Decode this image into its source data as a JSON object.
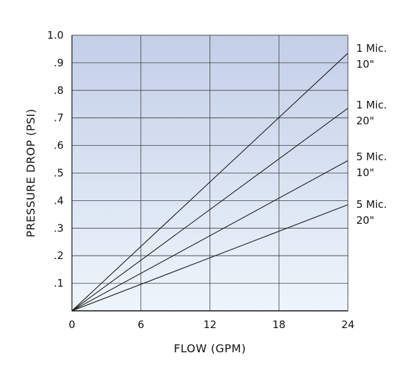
{
  "chart_data": {
    "type": "line",
    "title": "",
    "xlabel": "FLOW (GPM)",
    "ylabel": "PRESSURE DROP (PSI)",
    "xlim": [
      0,
      24
    ],
    "ylim": [
      0,
      1.0
    ],
    "grid": true,
    "x_ticks": [
      {
        "value": 0,
        "label": "0"
      },
      {
        "value": 6,
        "label": "6"
      },
      {
        "value": 12,
        "label": "12"
      },
      {
        "value": 18,
        "label": "18"
      },
      {
        "value": 24,
        "label": "24"
      }
    ],
    "y_ticks": [
      {
        "value": 0.1,
        "label": ".1"
      },
      {
        "value": 0.2,
        "label": ".2"
      },
      {
        "value": 0.3,
        "label": ".3"
      },
      {
        "value": 0.4,
        "label": ".4"
      },
      {
        "value": 0.5,
        "label": ".5"
      },
      {
        "value": 0.6,
        "label": ".6"
      },
      {
        "value": 0.7,
        "label": ".7"
      },
      {
        "value": 0.8,
        "label": ".8"
      },
      {
        "value": 0.9,
        "label": ".9"
      },
      {
        "value": 1.0,
        "label": "1.0"
      }
    ],
    "series": [
      {
        "name": "1 Mic. 10\"",
        "label_lines": [
          "1 Mic.",
          "10\""
        ],
        "x": [
          0,
          24
        ],
        "y": [
          0,
          0.935
        ]
      },
      {
        "name": "1 Mic. 20\"",
        "label_lines": [
          "1 Mic.",
          "20\""
        ],
        "x": [
          0,
          24
        ],
        "y": [
          0,
          0.735
        ]
      },
      {
        "name": "5 Mic. 10\"",
        "label_lines": [
          "5 Mic.",
          "10\""
        ],
        "x": [
          0,
          24
        ],
        "y": [
          0,
          0.545
        ]
      },
      {
        "name": "5 Mic. 20\"",
        "label_lines": [
          "5 Mic.",
          "20\""
        ],
        "x": [
          0,
          24
        ],
        "y": [
          0,
          0.385
        ]
      }
    ],
    "colors": {
      "plot_bg_top": "#c3cfe8",
      "plot_bg_bottom": "#eef5fc",
      "grid": "#3a3a3a",
      "line": "#1a1a1a",
      "text": "#111111"
    }
  }
}
